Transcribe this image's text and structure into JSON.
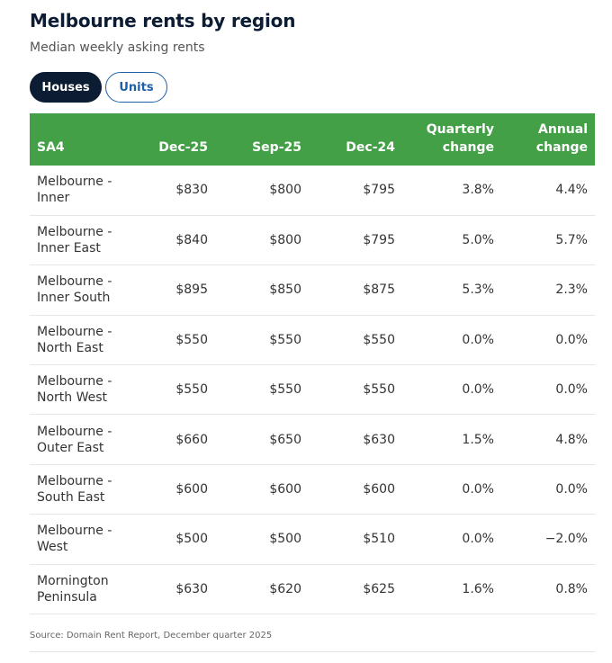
{
  "title": "Melbourne rents by region",
  "subtitle": "Median weekly asking rents",
  "tabs": [
    {
      "label": "Houses",
      "active": true
    },
    {
      "label": "Units",
      "active": false
    }
  ],
  "colors": {
    "header": "#43a047",
    "active_tab": "#0b1c33",
    "inactive_tab_text": "#1f5ea8"
  },
  "source": "Source: Domain Rent Report, December quarter 2025",
  "chart_data": {
    "type": "table",
    "title": "Melbourne rents by region",
    "subtitle": "Median weekly asking rents",
    "columns": [
      {
        "label": "SA4",
        "lines": [
          "SA4"
        ]
      },
      {
        "label": "Dec-25",
        "lines": [
          "Dec-25"
        ]
      },
      {
        "label": "Sep-25",
        "lines": [
          "Sep-25"
        ]
      },
      {
        "label": "Dec-24",
        "lines": [
          "Dec-24"
        ]
      },
      {
        "label": "Quarterly change",
        "lines": [
          "Quarterly",
          "change"
        ]
      },
      {
        "label": "Annual change",
        "lines": [
          "Annual",
          "change"
        ]
      }
    ],
    "rows": [
      {
        "region": [
          "Melbourne -",
          "Inner"
        ],
        "dec25": "$830",
        "sep25": "$800",
        "dec24": "$795",
        "quarterly": "3.8%",
        "annual": "4.4%"
      },
      {
        "region": [
          "Melbourne -",
          "Inner East"
        ],
        "dec25": "$840",
        "sep25": "$800",
        "dec24": "$795",
        "quarterly": "5.0%",
        "annual": "5.7%"
      },
      {
        "region": [
          "Melbourne -",
          "Inner South"
        ],
        "dec25": "$895",
        "sep25": "$850",
        "dec24": "$875",
        "quarterly": "5.3%",
        "annual": "2.3%"
      },
      {
        "region": [
          "Melbourne -",
          "North East"
        ],
        "dec25": "$550",
        "sep25": "$550",
        "dec24": "$550",
        "quarterly": "0.0%",
        "annual": "0.0%"
      },
      {
        "region": [
          "Melbourne -",
          "North West"
        ],
        "dec25": "$550",
        "sep25": "$550",
        "dec24": "$550",
        "quarterly": "0.0%",
        "annual": "0.0%"
      },
      {
        "region": [
          "Melbourne -",
          "Outer East"
        ],
        "dec25": "$660",
        "sep25": "$650",
        "dec24": "$630",
        "quarterly": "1.5%",
        "annual": "4.8%"
      },
      {
        "region": [
          "Melbourne -",
          "South East"
        ],
        "dec25": "$600",
        "sep25": "$600",
        "dec24": "$600",
        "quarterly": "0.0%",
        "annual": "0.0%"
      },
      {
        "region": [
          "Melbourne -",
          "West"
        ],
        "dec25": "$500",
        "sep25": "$500",
        "dec24": "$510",
        "quarterly": "0.0%",
        "annual": "−2.0%"
      },
      {
        "region": [
          "Mornington",
          "Peninsula"
        ],
        "dec25": "$630",
        "sep25": "$620",
        "dec24": "$625",
        "quarterly": "1.6%",
        "annual": "0.8%"
      }
    ]
  }
}
